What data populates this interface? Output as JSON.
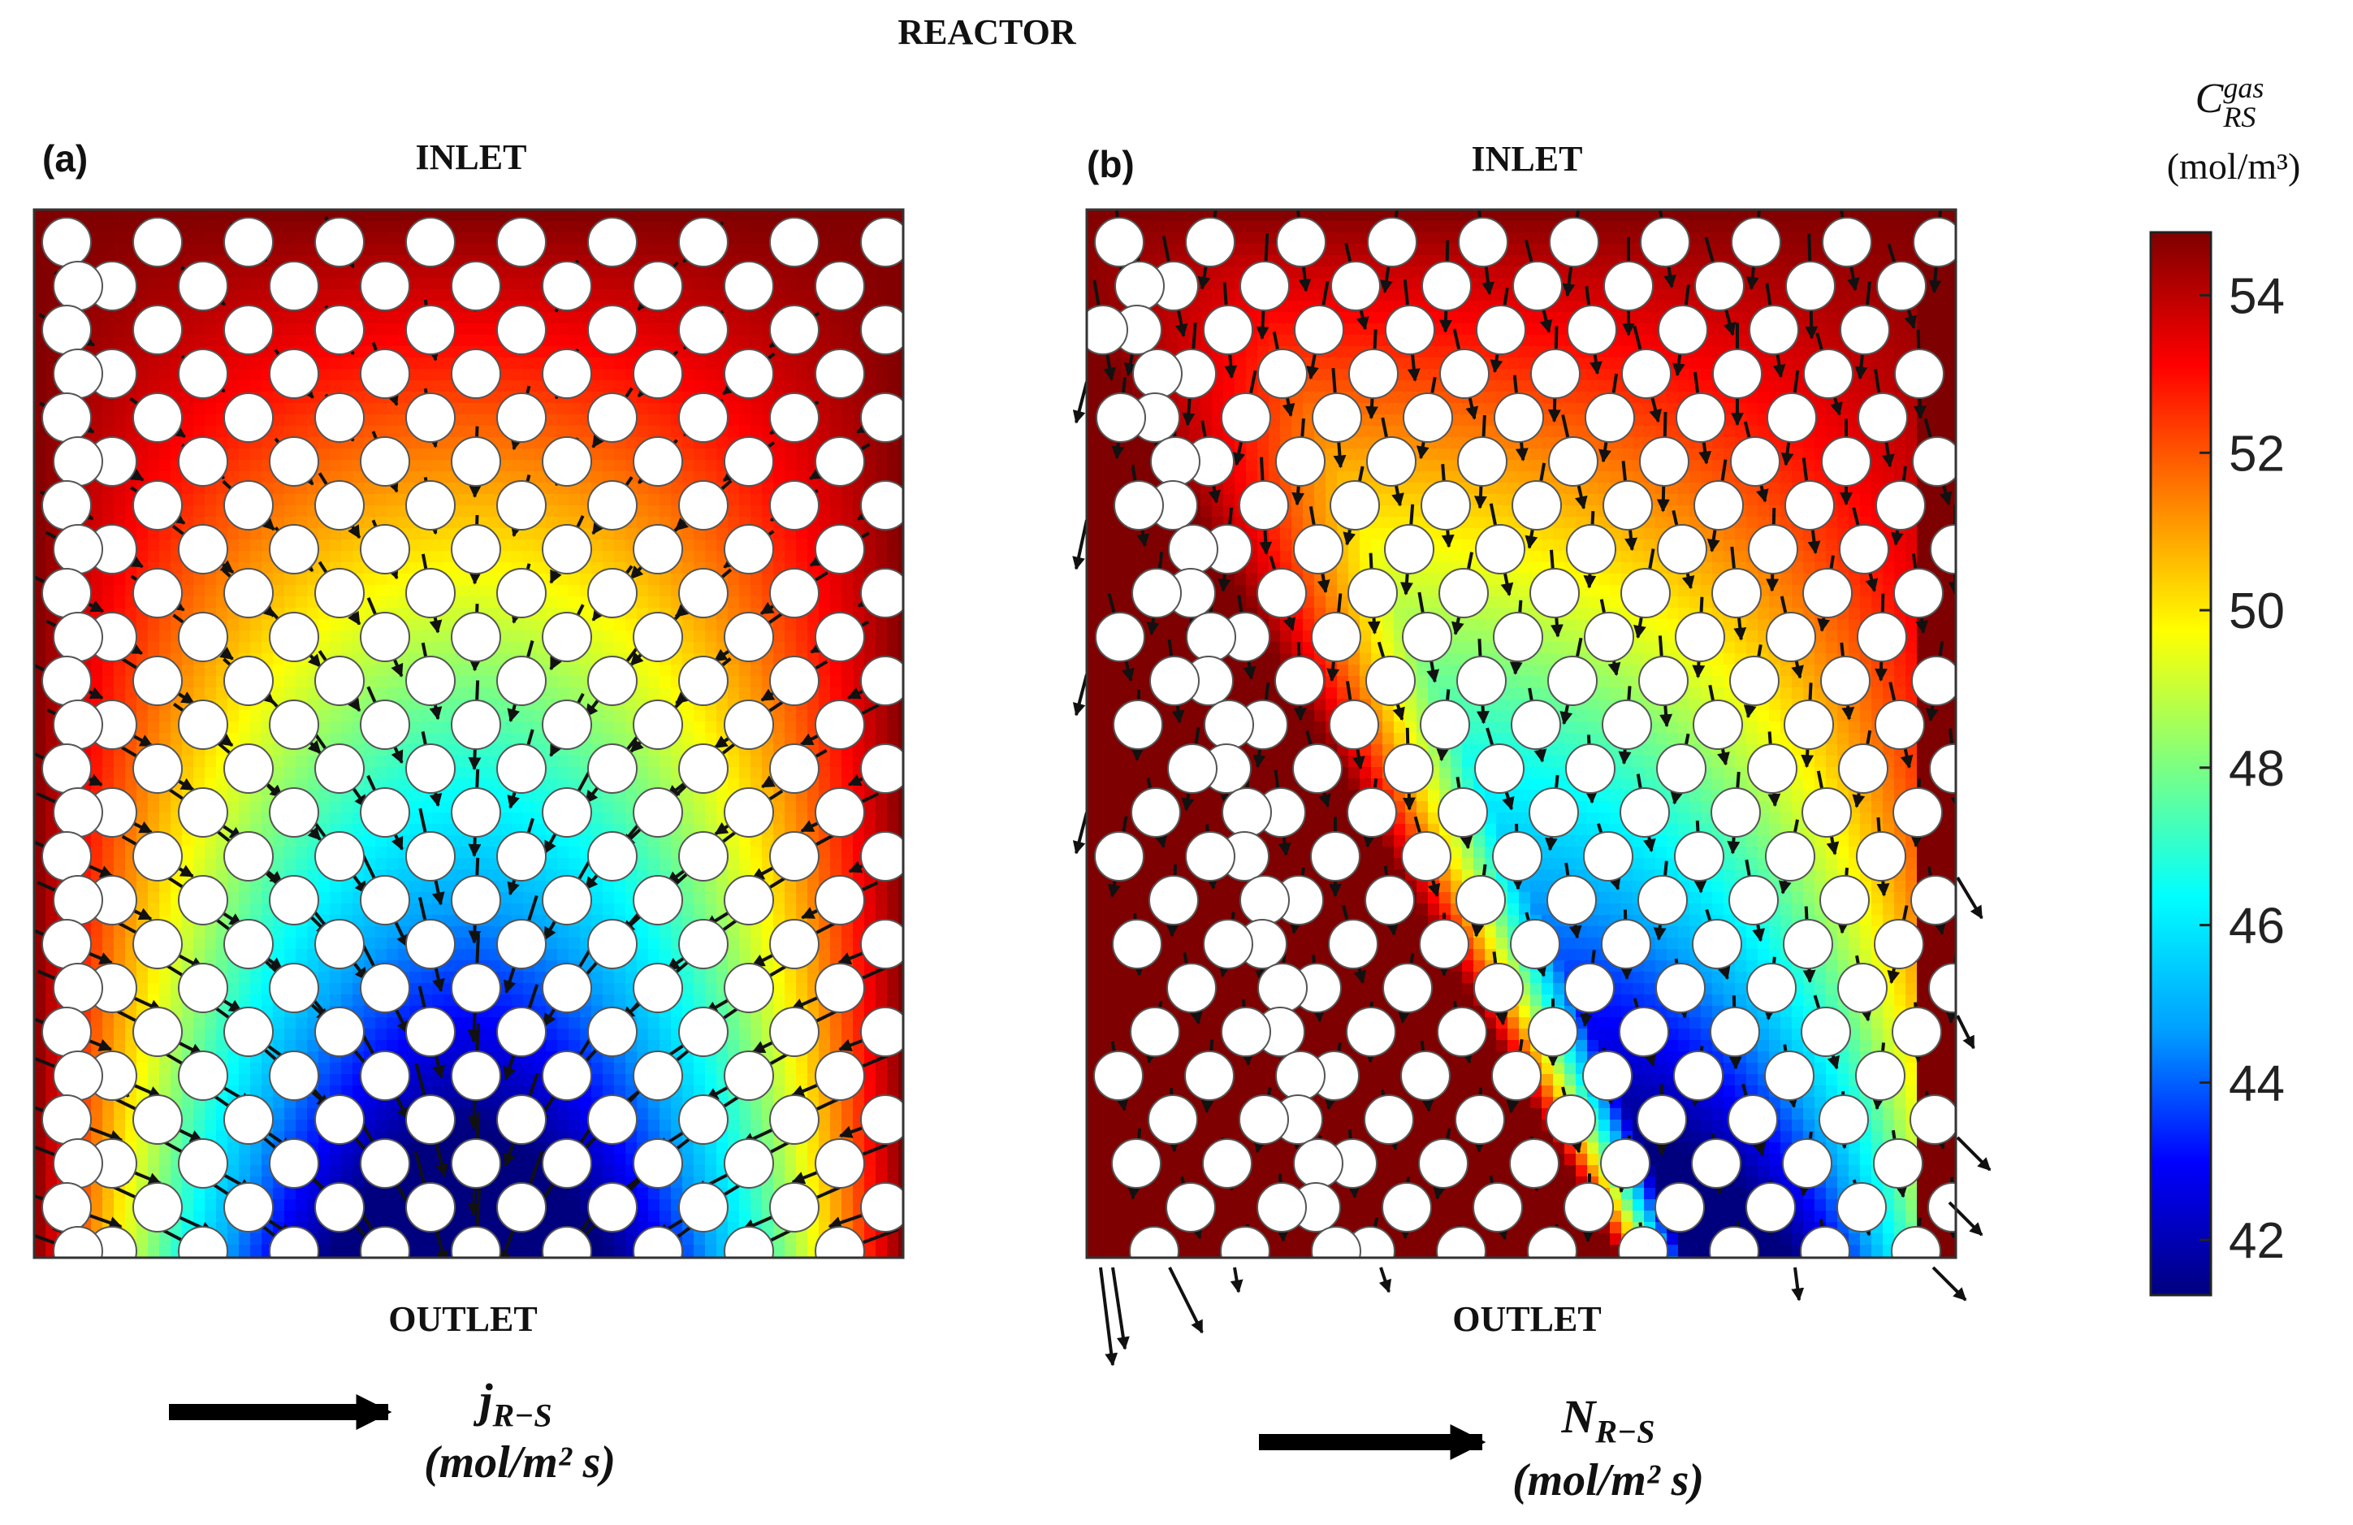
{
  "title": "REACTOR",
  "panels": [
    {
      "id": "a",
      "label": "(a)",
      "inlet_label": "INLET",
      "outlet_label": "OUTLET",
      "vector_symbol": "j",
      "vector_subscript": "R−S",
      "vector_units": "(mol/m² s)",
      "flux_direction": "converging-to-outlet-center"
    },
    {
      "id": "b",
      "label": "(b)",
      "inlet_label": "INLET",
      "outlet_label": "OUTLET",
      "vector_symbol": "N",
      "vector_subscript": "R−S",
      "vector_units": "(mol/m² s)",
      "flux_direction": "downward"
    }
  ],
  "colorbar": {
    "symbol": "C",
    "superscript": "gas",
    "subscript": "RS",
    "units": "(mol/m³)",
    "ticks": [
      "54",
      "52",
      "50",
      "48",
      "46",
      "44",
      "42"
    ],
    "range": [
      41.3,
      54.8
    ],
    "colormap": "jet"
  },
  "colors": {
    "jet": [
      "#00007f",
      "#0000ff",
      "#00a0ff",
      "#00ffff",
      "#7fff7f",
      "#ffff00",
      "#ff8000",
      "#ff0000",
      "#7f0000"
    ],
    "arrow": "#111111",
    "cylinder": "#ffffff"
  }
}
